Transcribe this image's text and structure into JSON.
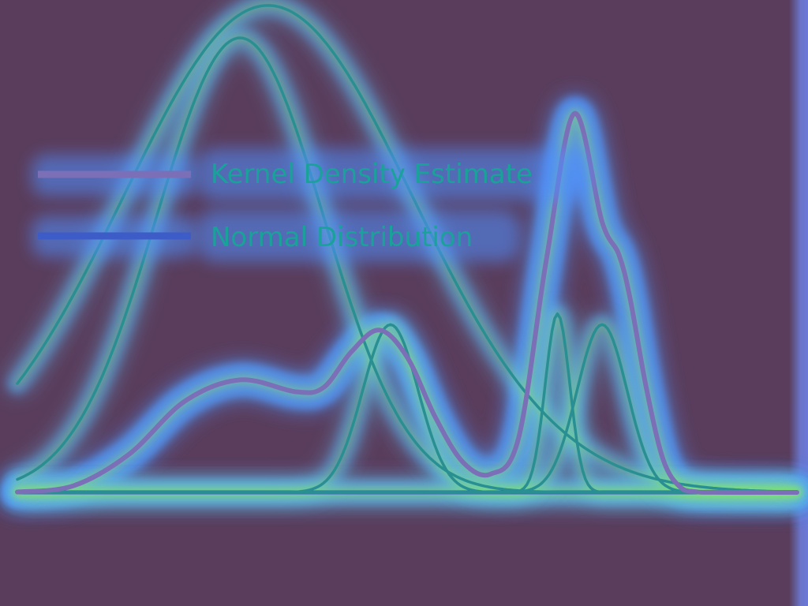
{
  "chart_data": {
    "type": "line",
    "title": "",
    "xlabel": "",
    "ylabel": "",
    "xlim": [
      -4,
      10
    ],
    "ylim": [
      0,
      0.35
    ],
    "grid": false,
    "legend": {
      "placement": "top-left",
      "entries": [
        {
          "label": "Kernel Density Estimate",
          "color": "#7b6fb8"
        },
        {
          "label": "Normal Distribution",
          "color": "#3d5cc8"
        }
      ]
    },
    "kde": {
      "name": "Kernel Density Estimate",
      "x": [
        -4.0,
        -3.0,
        -2.0,
        -1.0,
        0.0,
        1.0,
        1.5,
        2.0,
        2.5,
        3.0,
        3.5,
        4.0,
        4.5,
        5.0,
        5.5,
        6.0,
        6.5,
        6.8,
        7.0,
        7.3,
        7.6,
        7.9,
        8.2,
        8.5,
        9.0,
        9.5,
        10.0
      ],
      "y": [
        0.0004,
        0.006,
        0.035,
        0.084,
        0.104,
        0.093,
        0.097,
        0.13,
        0.15,
        0.125,
        0.07,
        0.028,
        0.017,
        0.05,
        0.215,
        0.35,
        0.25,
        0.22,
        0.18,
        0.095,
        0.03,
        0.005,
        0.0005,
        0.0001,
        0.0,
        0.0,
        0.0
      ]
    },
    "normals": [
      {
        "name": "Normal Distribution",
        "mean": 0.0,
        "sd": 1.5,
        "weight": 0.42,
        "color": "#2a8f92"
      },
      {
        "name": "Normal Distribution",
        "mean": 0.5,
        "sd": 2.6,
        "weight": 0.45,
        "color": "#2a8f92"
      },
      {
        "name": "Normal Distribution",
        "mean": 2.7,
        "sd": 0.5,
        "weight": 0.155,
        "color": "#2a8f92"
      },
      {
        "name": "Normal Distribution",
        "mean": 5.7,
        "sd": 0.22,
        "weight": 0.165,
        "color": "#2a8f92"
      },
      {
        "name": "Normal Distribution",
        "mean": 6.5,
        "sd": 0.45,
        "weight": 0.155,
        "color": "#2a8f92"
      }
    ],
    "baseline": {
      "y": 0.0,
      "color": "#3d5cc8"
    }
  }
}
